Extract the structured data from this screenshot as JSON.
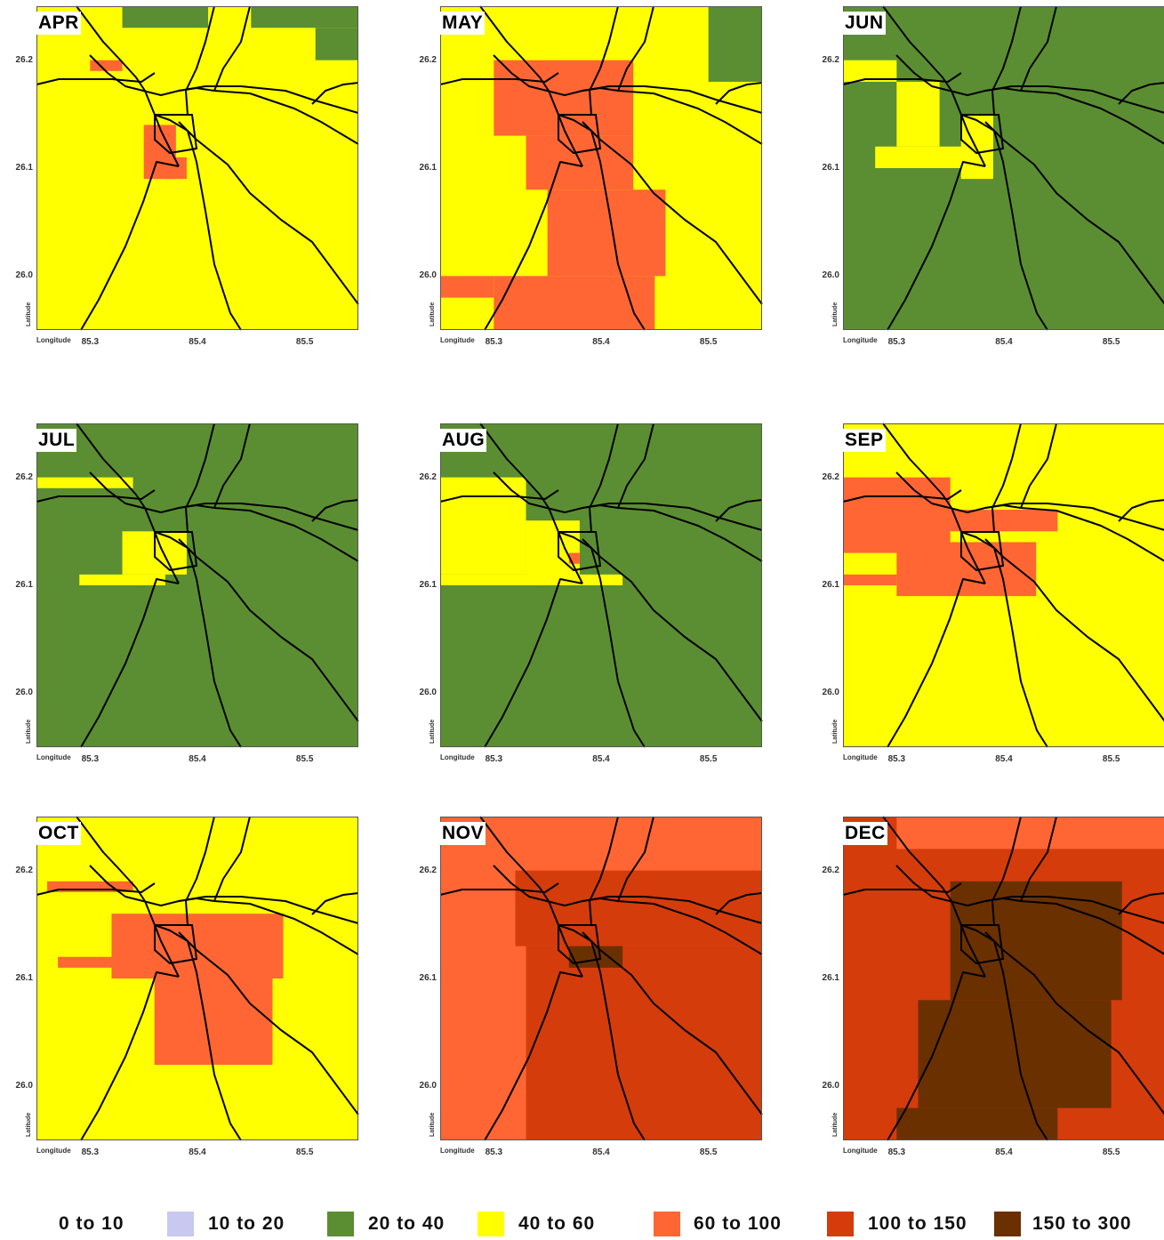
{
  "colors": {
    "class_0_10": "#ffffff",
    "class_10_20": "#c8c8f0",
    "class_20_40": "#5b8e32",
    "class_40_60": "#ffff00",
    "class_60_100": "#ff6633",
    "class_100_150": "#d43c0b",
    "class_150_300": "#6b3000",
    "roads": "#000000"
  },
  "axis": {
    "lat_title": "Latitude",
    "lon_title": "Longitude",
    "lat_ticks": [
      "26.2",
      "26.1",
      "26.0"
    ],
    "lon_ticks": [
      "85.3",
      "85.4",
      "85.5"
    ]
  },
  "panels": [
    {
      "month": "APR",
      "background": "class_40_60",
      "patches": [
        {
          "cls": "class_20_40",
          "lon": [
            85.33,
            85.41
          ],
          "lat": [
            26.23,
            26.25
          ]
        },
        {
          "cls": "class_20_40",
          "lon": [
            85.45,
            85.55
          ],
          "lat": [
            26.23,
            26.25
          ]
        },
        {
          "cls": "class_20_40",
          "lon": [
            85.51,
            85.55
          ],
          "lat": [
            26.2,
            26.23
          ]
        },
        {
          "cls": "class_60_100",
          "lon": [
            85.35,
            85.38
          ],
          "lat": [
            26.09,
            26.14
          ]
        },
        {
          "cls": "class_60_100",
          "lon": [
            85.37,
            85.39
          ],
          "lat": [
            26.09,
            26.11
          ]
        },
        {
          "cls": "class_60_100",
          "lon": [
            85.3,
            85.33
          ],
          "lat": [
            26.19,
            26.2
          ]
        }
      ]
    },
    {
      "month": "MAY",
      "background": "class_40_60",
      "patches": [
        {
          "cls": "class_20_40",
          "lon": [
            85.5,
            85.55
          ],
          "lat": [
            26.18,
            26.25
          ]
        },
        {
          "cls": "class_60_100",
          "lon": [
            85.3,
            85.43
          ],
          "lat": [
            26.13,
            26.2
          ]
        },
        {
          "cls": "class_60_100",
          "lon": [
            85.33,
            85.43
          ],
          "lat": [
            26.08,
            26.13
          ]
        },
        {
          "cls": "class_60_100",
          "lon": [
            85.35,
            85.46
          ],
          "lat": [
            26.0,
            26.08
          ]
        },
        {
          "cls": "class_60_100",
          "lon": [
            85.3,
            85.45
          ],
          "lat": [
            25.95,
            26.0
          ]
        },
        {
          "cls": "class_60_100",
          "lon": [
            85.25,
            85.3
          ],
          "lat": [
            25.98,
            26.0
          ]
        }
      ]
    },
    {
      "month": "JUN",
      "background": "class_20_40",
      "patches": [
        {
          "cls": "class_40_60",
          "lon": [
            85.25,
            85.3
          ],
          "lat": [
            26.18,
            26.2
          ]
        },
        {
          "cls": "class_40_60",
          "lon": [
            85.3,
            85.34
          ],
          "lat": [
            26.12,
            26.18
          ]
        },
        {
          "cls": "class_40_60",
          "lon": [
            85.28,
            85.38
          ],
          "lat": [
            26.1,
            26.12
          ]
        },
        {
          "cls": "class_40_60",
          "lon": [
            85.36,
            85.39
          ],
          "lat": [
            26.09,
            26.15
          ]
        }
      ]
    },
    {
      "month": "JUL",
      "background": "class_20_40",
      "patches": [
        {
          "cls": "class_40_60",
          "lon": [
            85.25,
            85.34
          ],
          "lat": [
            26.19,
            26.2
          ]
        },
        {
          "cls": "class_40_60",
          "lon": [
            85.33,
            85.39
          ],
          "lat": [
            26.11,
            26.15
          ]
        },
        {
          "cls": "class_40_60",
          "lon": [
            85.29,
            85.37
          ],
          "lat": [
            26.1,
            26.11
          ]
        }
      ]
    },
    {
      "month": "AUG",
      "background": "class_20_40",
      "patches": [
        {
          "cls": "class_40_60",
          "lon": [
            85.25,
            85.33
          ],
          "lat": [
            26.11,
            26.2
          ]
        },
        {
          "cls": "class_40_60",
          "lon": [
            85.25,
            85.42
          ],
          "lat": [
            26.1,
            26.11
          ]
        },
        {
          "cls": "class_40_60",
          "lon": [
            85.33,
            85.38
          ],
          "lat": [
            26.1,
            26.16
          ]
        },
        {
          "cls": "class_60_100",
          "lon": [
            85.37,
            85.38
          ],
          "lat": [
            26.12,
            26.13
          ]
        }
      ]
    },
    {
      "month": "SEP",
      "background": "class_40_60",
      "patches": [
        {
          "cls": "class_60_100",
          "lon": [
            85.25,
            85.35
          ],
          "lat": [
            26.13,
            26.2
          ]
        },
        {
          "cls": "class_60_100",
          "lon": [
            85.33,
            85.45
          ],
          "lat": [
            26.15,
            26.17
          ]
        },
        {
          "cls": "class_60_100",
          "lon": [
            85.3,
            85.43
          ],
          "lat": [
            26.09,
            26.14
          ]
        },
        {
          "cls": "class_60_100",
          "lon": [
            85.25,
            85.3
          ],
          "lat": [
            26.1,
            26.11
          ]
        }
      ]
    },
    {
      "month": "OCT",
      "background": "class_40_60",
      "patches": [
        {
          "cls": "class_60_100",
          "lon": [
            85.26,
            85.34
          ],
          "lat": [
            26.18,
            26.19
          ]
        },
        {
          "cls": "class_60_100",
          "lon": [
            85.32,
            85.48
          ],
          "lat": [
            26.1,
            26.16
          ]
        },
        {
          "cls": "class_60_100",
          "lon": [
            85.36,
            85.47
          ],
          "lat": [
            26.02,
            26.1
          ]
        },
        {
          "cls": "class_60_100",
          "lon": [
            85.27,
            85.35
          ],
          "lat": [
            26.11,
            26.12
          ]
        }
      ]
    },
    {
      "month": "NOV",
      "background": "class_60_100",
      "patches": [
        {
          "cls": "class_100_150",
          "lon": [
            85.32,
            85.55
          ],
          "lat": [
            26.13,
            26.2
          ]
        },
        {
          "cls": "class_100_150",
          "lon": [
            85.33,
            85.55
          ],
          "lat": [
            25.95,
            26.13
          ]
        },
        {
          "cls": "class_150_300",
          "lon": [
            85.37,
            85.42
          ],
          "lat": [
            26.11,
            26.13
          ]
        }
      ]
    },
    {
      "month": "DEC",
      "background": "class_100_150",
      "patches": [
        {
          "cls": "class_60_100",
          "lon": [
            85.3,
            85.55
          ],
          "lat": [
            26.22,
            26.25
          ]
        },
        {
          "cls": "class_150_300",
          "lon": [
            85.35,
            85.51
          ],
          "lat": [
            26.08,
            26.19
          ]
        },
        {
          "cls": "class_150_300",
          "lon": [
            85.32,
            85.5
          ],
          "lat": [
            25.98,
            26.08
          ]
        },
        {
          "cls": "class_150_300",
          "lon": [
            85.3,
            85.45
          ],
          "lat": [
            25.95,
            25.98
          ]
        }
      ]
    }
  ],
  "legend": [
    {
      "label": "0 to 10",
      "cls": "class_0_10"
    },
    {
      "label": "10 to 20",
      "cls": "class_10_20"
    },
    {
      "label": "20 to 40",
      "cls": "class_20_40"
    },
    {
      "label": "40 to 60",
      "cls": "class_40_60"
    },
    {
      "label": "60 to 100",
      "cls": "class_60_100"
    },
    {
      "label": "100 to 150",
      "cls": "class_100_150"
    },
    {
      "label": "150 to 300",
      "cls": "class_150_300"
    }
  ]
}
